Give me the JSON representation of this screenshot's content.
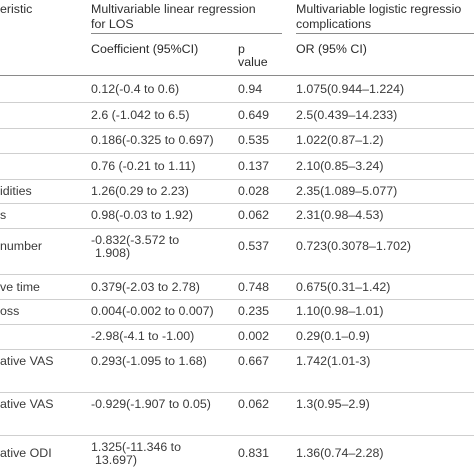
{
  "header": {
    "characteristic": "eristic",
    "group_linear_line1": "Multivariable linear regression",
    "group_linear_line2": "for LOS",
    "group_logistic_line1": "Multivariable logistic regressio",
    "group_logistic_line2": "complications",
    "coef_label": "Coefficient (95%CI)",
    "p_label_line1": "p",
    "p_label_line2": "value",
    "or_label": "OR (95% CI)"
  },
  "rows": [
    {
      "label": "",
      "coef": "0.12(-0.4 to 0.6)",
      "coef2": "",
      "p": "0.94",
      "or": "1.075(0.944–1.224)"
    },
    {
      "label": "",
      "coef": "2.6 (-1.042 to 6.5)",
      "coef2": "",
      "p": "0.649",
      "or": "2.5(0.439–14.233)"
    },
    {
      "label": "",
      "coef": "0.186(-0.325 to 0.697)",
      "coef2": "",
      "p": "0.535",
      "or": "1.022(0.87–1.2)"
    },
    {
      "label": "",
      "coef": "0.76 (-0.21 to 1.11)",
      "coef2": "",
      "p": "0.137",
      "or": "2.10(0.85–3.24)"
    },
    {
      "label": "idities",
      "coef": "1.26(0.29 to 2.23)",
      "coef2": "",
      "p": "0.028",
      "or": "2.35(1.089–5.077)"
    },
    {
      "label": "s",
      "coef": "0.98(-0.03 to 1.92)",
      "coef2": "",
      "p": "0.062",
      "or": "2.31(0.98–4.53)"
    },
    {
      "label": "number",
      "coef": "-0.832(-3.572 to",
      "coef2": "1.908)",
      "p": "0.537",
      "or": "0.723(0.3078–1.702)"
    },
    {
      "label": "ve time",
      "coef": "0.379(-2.03 to 2.78)",
      "coef2": "",
      "p": "0.748",
      "or": "0.675(0.31–1.42)"
    },
    {
      "label": "oss",
      "coef": "0.004(-0.002 to 0.007)",
      "coef2": "",
      "p": "0.235",
      "or": "1.10(0.98–1.01)"
    },
    {
      "label": "",
      "coef": "-2.98(-4.1 to -1.00)",
      "coef2": "",
      "p": "0.002",
      "or": "0.29(0.1–0.9)"
    },
    {
      "label": "ative VAS",
      "coef": "0.293(-1.095 to 1.68)",
      "coef2": "",
      "p": "0.667",
      "or": "1.742(1.01-3)"
    },
    {
      "label": "ative VAS",
      "coef": "-0.929(-1.907 to 0.05)",
      "coef2": "",
      "p": "0.062",
      "or": "1.3(0.95–2.9)"
    },
    {
      "label": "ative ODI",
      "coef": "1.325(-11.346 to",
      "coef2": "13.697)",
      "p": "0.831",
      "or": "1.36(0.74–2.28)"
    }
  ]
}
